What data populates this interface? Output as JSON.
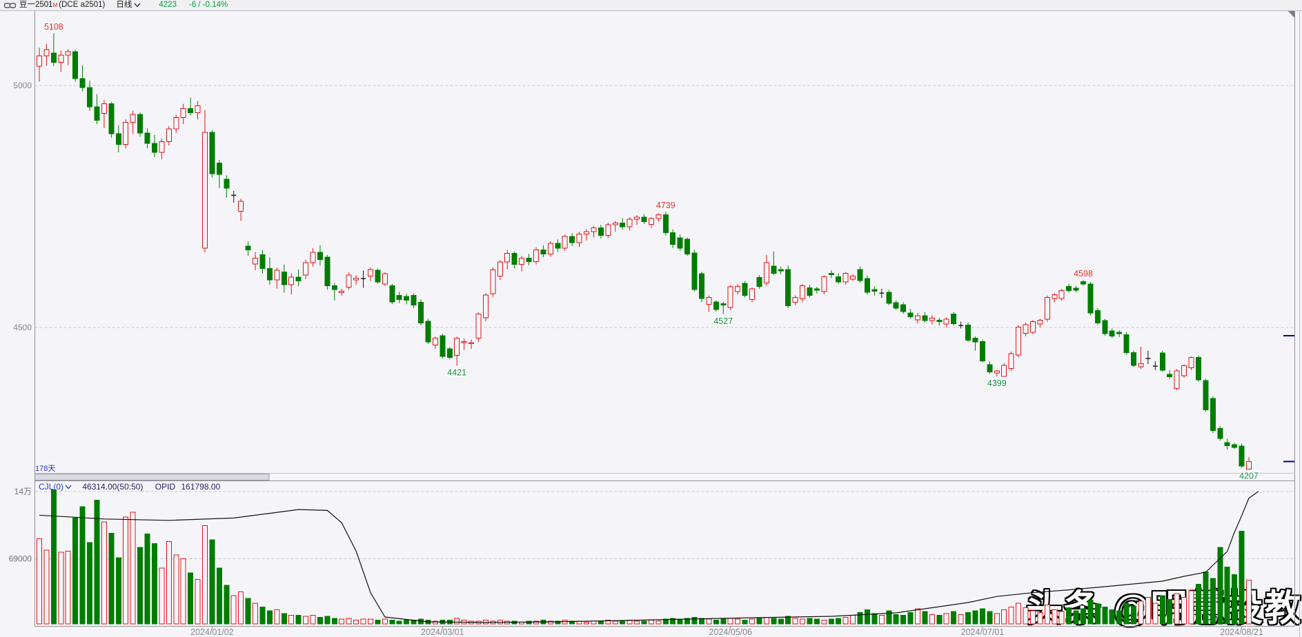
{
  "header": {
    "symbol": "豆一2501",
    "flag": "M",
    "code": "(DCE a2501)",
    "period": "日线",
    "price": "4223",
    "change": "-6 / -0.14%"
  },
  "main_chart": {
    "range_label": "178天"
  },
  "sub_chart": {
    "indicator": "CJL(0)",
    "value": "46314.00(50:50)",
    "opid_label": "OPID",
    "opid_value": "161798.00"
  },
  "watermark": "头条 @明慧投教",
  "colors": {
    "up": "#e11212",
    "down": "#007d00",
    "doji": "#111111",
    "high_label": "#e02424",
    "low_label": "#118a43",
    "accent_blue": "#2244cc",
    "navy_marker": "#00008b",
    "grid": "#c9c9cf",
    "axis": "#8f8f97",
    "text_gray": "#86868c",
    "oi_line": "#101010",
    "bg": "#f5f5f9"
  },
  "chart_data": {
    "type": "candlestick",
    "title": "豆一2501 (DCE a2501) 日线",
    "price_axis": {
      "ticks": [
        {
          "label": "5000",
          "value": 5000
        },
        {
          "label": "4500",
          "value": 4500
        }
      ]
    },
    "volume_axis": {
      "ticks": [
        {
          "label": "14万",
          "value": 140000
        },
        {
          "label": "69000",
          "value": 69000
        }
      ]
    },
    "date_ticks": [
      {
        "label": "2024/01/02",
        "index": 24
      },
      {
        "label": "2024/03/01",
        "index": 56
      },
      {
        "label": "2024/05/06",
        "index": 96
      },
      {
        "label": "2024/07/01",
        "index": 131
      },
      {
        "label": "2024/08/21",
        "index": 167
      }
    ],
    "extreme_labels": [
      {
        "text": "5108",
        "index": 2,
        "price": 5108,
        "kind": "high"
      },
      {
        "text": "4739",
        "index": 87,
        "price": 4739,
        "kind": "high"
      },
      {
        "text": "4598",
        "index": 145,
        "price": 4598,
        "kind": "high"
      },
      {
        "text": "4421",
        "index": 58,
        "price": 4421,
        "kind": "low"
      },
      {
        "text": "4527",
        "index": 95,
        "price": 4527,
        "kind": "low"
      },
      {
        "text": "4399",
        "index": 133,
        "price": 4399,
        "kind": "low"
      },
      {
        "text": "4207",
        "index": 168,
        "price": 4207,
        "kind": "low"
      }
    ],
    "right_price_markers": [
      4483,
      4223
    ],
    "candles": [
      [
        5040,
        5078,
        5008,
        5061
      ],
      [
        5061,
        5086,
        5041,
        5074
      ],
      [
        5067,
        5108,
        5040,
        5048
      ],
      [
        5048,
        5072,
        5028,
        5063
      ],
      [
        5063,
        5075,
        5042,
        5070
      ],
      [
        5070,
        5074,
        5008,
        5014
      ],
      [
        5014,
        5042,
        4988,
        4996
      ],
      [
        4996,
        5010,
        4948,
        4956
      ],
      [
        4956,
        4982,
        4920,
        4928
      ],
      [
        4942,
        4970,
        4912,
        4962
      ],
      [
        4962,
        4966,
        4892,
        4900
      ],
      [
        4900,
        4918,
        4862,
        4878
      ],
      [
        4878,
        4930,
        4870,
        4924
      ],
      [
        4924,
        4948,
        4900,
        4940
      ],
      [
        4940,
        4944,
        4894,
        4902
      ],
      [
        4902,
        4912,
        4870,
        4880
      ],
      [
        4880,
        4898,
        4852,
        4862
      ],
      [
        4862,
        4890,
        4848,
        4884
      ],
      [
        4884,
        4916,
        4876,
        4910
      ],
      [
        4910,
        4940,
        4902,
        4934
      ],
      [
        4934,
        4962,
        4920,
        4952
      ],
      [
        4952,
        4975,
        4938,
        4944
      ],
      [
        4944,
        4968,
        4930,
        4958
      ],
      [
        4664,
        4949,
        4655,
        4903
      ],
      [
        4903,
        4908,
        4810,
        4818
      ],
      [
        4840,
        4846,
        4788,
        4816
      ],
      [
        4806,
        4814,
        4768,
        4788
      ],
      [
        4773,
        4782,
        4758,
        4773
      ],
      [
        4740,
        4766,
        4720,
        4761
      ],
      [
        4668,
        4678,
        4648,
        4660
      ],
      [
        4631,
        4656,
        4618,
        4643
      ],
      [
        4650,
        4660,
        4612,
        4622
      ],
      [
        4622,
        4645,
        4588,
        4598
      ],
      [
        4598,
        4624,
        4580,
        4618
      ],
      [
        4615,
        4630,
        4572,
        4588
      ],
      [
        4588,
        4612,
        4568,
        4604
      ],
      [
        4604,
        4620,
        4585,
        4596
      ],
      [
        4608,
        4640,
        4600,
        4634
      ],
      [
        4634,
        4664,
        4626,
        4655
      ],
      [
        4655,
        4670,
        4628,
        4640
      ],
      [
        4645,
        4650,
        4578,
        4586
      ],
      [
        4586,
        4592,
        4556,
        4578
      ],
      [
        4572,
        4580,
        4566,
        4575
      ],
      [
        4583,
        4614,
        4578,
        4608
      ],
      [
        4598,
        4608,
        4588,
        4602
      ],
      [
        4600,
        4618,
        4582,
        4601
      ],
      [
        4606,
        4624,
        4596,
        4620
      ],
      [
        4618,
        4622,
        4590,
        4594
      ],
      [
        4590,
        4614,
        4586,
        4611
      ],
      [
        4586,
        4590,
        4548,
        4553
      ],
      [
        4566,
        4574,
        4550,
        4558
      ],
      [
        4564,
        4570,
        4548,
        4556
      ],
      [
        4566,
        4570,
        4540,
        4546
      ],
      [
        4552,
        4558,
        4504,
        4509
      ],
      [
        4513,
        4518,
        4466,
        4470
      ],
      [
        4464,
        4481,
        4456,
        4478
      ],
      [
        4483,
        4487,
        4436,
        4440
      ],
      [
        4456,
        4460,
        4434,
        4438
      ],
      [
        4442,
        4481,
        4421,
        4478
      ],
      [
        4469,
        4477,
        4453,
        4471
      ],
      [
        4467,
        4475,
        4456,
        4469
      ],
      [
        4478,
        4531,
        4470,
        4528
      ],
      [
        4520,
        4571,
        4513,
        4567
      ],
      [
        4570,
        4624,
        4563,
        4619
      ],
      [
        4606,
        4639,
        4598,
        4635
      ],
      [
        4635,
        4660,
        4620,
        4653
      ],
      [
        4653,
        4657,
        4622,
        4630
      ],
      [
        4630,
        4648,
        4616,
        4643
      ],
      [
        4643,
        4652,
        4628,
        4636
      ],
      [
        4636,
        4666,
        4630,
        4660
      ],
      [
        4660,
        4670,
        4645,
        4652
      ],
      [
        4652,
        4678,
        4646,
        4674
      ],
      [
        4674,
        4682,
        4656,
        4664
      ],
      [
        4664,
        4692,
        4658,
        4688
      ],
      [
        4688,
        4695,
        4668,
        4675
      ],
      [
        4675,
        4698,
        4666,
        4693
      ],
      [
        4693,
        4703,
        4680,
        4698
      ],
      [
        4698,
        4710,
        4686,
        4706
      ],
      [
        4706,
        4712,
        4684,
        4690
      ],
      [
        4690,
        4716,
        4685,
        4712
      ],
      [
        4712,
        4720,
        4698,
        4716
      ],
      [
        4716,
        4726,
        4702,
        4708
      ],
      [
        4708,
        4728,
        4700,
        4724
      ],
      [
        4724,
        4732,
        4712,
        4728
      ],
      [
        4728,
        4734,
        4714,
        4719
      ],
      [
        4713,
        4728,
        4706,
        4725
      ],
      [
        4725,
        4736,
        4718,
        4733
      ],
      [
        4733,
        4739,
        4690,
        4696
      ],
      [
        4696,
        4703,
        4664,
        4672
      ],
      [
        4685,
        4692,
        4658,
        4664
      ],
      [
        4682,
        4686,
        4648,
        4652
      ],
      [
        4654,
        4660,
        4575,
        4578
      ],
      [
        4611,
        4615,
        4552,
        4560
      ],
      [
        4548,
        4566,
        4532,
        4562
      ],
      [
        4553,
        4556,
        4533,
        4537
      ],
      [
        4549,
        4553,
        4527,
        4546
      ],
      [
        4541,
        4588,
        4536,
        4584
      ],
      [
        4574,
        4590,
        4568,
        4585
      ],
      [
        4591,
        4596,
        4562,
        4566
      ],
      [
        4558,
        4583,
        4552,
        4580
      ],
      [
        4603,
        4608,
        4580,
        4585
      ],
      [
        4592,
        4650,
        4586,
        4634
      ],
      [
        4627,
        4657,
        4608,
        4612
      ],
      [
        4620,
        4626,
        4610,
        4617
      ],
      [
        4620,
        4628,
        4540,
        4545
      ],
      [
        4552,
        4566,
        4546,
        4562
      ],
      [
        4559,
        4590,
        4552,
        4586
      ],
      [
        4582,
        4588,
        4562,
        4566
      ],
      [
        4580,
        4584,
        4570,
        4577
      ],
      [
        4574,
        4608,
        4568,
        4605
      ],
      [
        4612,
        4618,
        4602,
        4609
      ],
      [
        4605,
        4612,
        4590,
        4594
      ],
      [
        4594,
        4615,
        4588,
        4612
      ],
      [
        4600,
        4610,
        4596,
        4606
      ],
      [
        4620,
        4626,
        4592,
        4597
      ],
      [
        4601,
        4608,
        4568,
        4573
      ],
      [
        4578,
        4585,
        4566,
        4575
      ],
      [
        4571,
        4580,
        4561,
        4571
      ],
      [
        4573,
        4578,
        4546,
        4550
      ],
      [
        4551,
        4556,
        4536,
        4540
      ],
      [
        4547,
        4552,
        4528,
        4533
      ],
      [
        4530,
        4538,
        4518,
        4522
      ],
      [
        4516,
        4530,
        4508,
        4524
      ],
      [
        4524,
        4532,
        4510,
        4514
      ],
      [
        4514,
        4526,
        4506,
        4519
      ],
      [
        4515,
        4520,
        4504,
        4512
      ],
      [
        4507,
        4521,
        4500,
        4517
      ],
      [
        4528,
        4532,
        4504,
        4508
      ],
      [
        4505,
        4512,
        4498,
        4504
      ],
      [
        4505,
        4510,
        4470,
        4474
      ],
      [
        4478,
        4482,
        4452,
        4470
      ],
      [
        4471,
        4475,
        4428,
        4431
      ],
      [
        4423,
        4430,
        4404,
        4408
      ],
      [
        4406,
        4412,
        4399,
        4410
      ],
      [
        4399,
        4426,
        4399,
        4422
      ],
      [
        4415,
        4450,
        4410,
        4446
      ],
      [
        4443,
        4505,
        4438,
        4501
      ],
      [
        4488,
        4510,
        4482,
        4506
      ],
      [
        4490,
        4515,
        4486,
        4512
      ],
      [
        4507,
        4518,
        4500,
        4515
      ],
      [
        4517,
        4566,
        4512,
        4562
      ],
      [
        4560,
        4571,
        4552,
        4568
      ],
      [
        4560,
        4580,
        4555,
        4576
      ],
      [
        4585,
        4590,
        4572,
        4576
      ],
      [
        4581,
        4586,
        4572,
        4577
      ],
      [
        4595,
        4598,
        4586,
        4590
      ],
      [
        4590,
        4594,
        4525,
        4530
      ],
      [
        4535,
        4540,
        4505,
        4509
      ],
      [
        4514,
        4518,
        4483,
        4487
      ],
      [
        4493,
        4498,
        4478,
        4482
      ],
      [
        4490,
        4494,
        4480,
        4487
      ],
      [
        4485,
        4490,
        4444,
        4448
      ],
      [
        4448,
        4452,
        4418,
        4422
      ],
      [
        4419,
        4460,
        4414,
        4425
      ],
      [
        4436,
        4452,
        4424,
        4436
      ],
      [
        4421,
        4430,
        4412,
        4420
      ],
      [
        4447,
        4452,
        4408,
        4412
      ],
      [
        4403,
        4412,
        4394,
        4398
      ],
      [
        4374,
        4414,
        4370,
        4410
      ],
      [
        4400,
        4424,
        4396,
        4421
      ],
      [
        4417,
        4440,
        4412,
        4438
      ],
      [
        4438,
        4442,
        4388,
        4392
      ],
      [
        4390,
        4394,
        4326,
        4330
      ],
      [
        4353,
        4358,
        4282,
        4287
      ],
      [
        4291,
        4296,
        4266,
        4271
      ],
      [
        4262,
        4270,
        4248,
        4256
      ],
      [
        4258,
        4262,
        4249,
        4252
      ],
      [
        4255,
        4260,
        4210,
        4214
      ],
      [
        4207,
        4232,
        4207,
        4223
      ]
    ],
    "volumes": [
      90000,
      78000,
      142000,
      76000,
      77000,
      112000,
      124000,
      86000,
      131000,
      108000,
      96000,
      70000,
      113000,
      118000,
      81000,
      95000,
      85000,
      59000,
      87000,
      73000,
      69000,
      54000,
      47000,
      104000,
      89000,
      59000,
      41000,
      30000,
      34000,
      27000,
      22000,
      18000,
      14000,
      15000,
      11000,
      9000,
      9000,
      8000,
      9000,
      7000,
      8000,
      6000,
      5000,
      6000,
      4000,
      5000,
      5000,
      4000,
      5000,
      4000,
      3000,
      4000,
      4000,
      5000,
      4000,
      3000,
      4000,
      4000,
      6000,
      4000,
      3000,
      3000,
      4000,
      3000,
      4000,
      3000,
      3000,
      2000,
      3000,
      3000,
      4000,
      3000,
      3000,
      4000,
      3000,
      3000,
      2000,
      3000,
      3000,
      4000,
      3000,
      3000,
      4000,
      3000,
      3000,
      4000,
      3000,
      5000,
      6000,
      5000,
      6000,
      7000,
      6000,
      5000,
      4000,
      5000,
      6000,
      5000,
      4000,
      5000,
      6000,
      7000,
      6000,
      5000,
      8000,
      6000,
      5000,
      6000,
      5000,
      4000,
      5000,
      6000,
      7000,
      9000,
      12000,
      15000,
      11000,
      9000,
      14000,
      10000,
      9000,
      12000,
      16000,
      13000,
      10000,
      9000,
      11000,
      13000,
      10000,
      12000,
      14000,
      16000,
      13000,
      11000,
      15000,
      18000,
      22000,
      17000,
      14000,
      12000,
      20000,
      15000,
      13000,
      17000,
      14000,
      16000,
      25000,
      21000,
      18000,
      15000,
      14000,
      22000,
      19000,
      24000,
      28000,
      22000,
      30000,
      26000,
      32000,
      28000,
      35000,
      42000,
      55000,
      48000,
      81000,
      60000,
      52000,
      98000,
      46314
    ],
    "open_interest_line": [
      [
        0,
        115000
      ],
      [
        9,
        111000
      ],
      [
        18,
        109500
      ],
      [
        27,
        112000
      ],
      [
        36,
        121000
      ],
      [
        40,
        120000
      ],
      [
        42,
        107000
      ],
      [
        44,
        77000
      ],
      [
        46,
        33000
      ],
      [
        48,
        7300
      ],
      [
        54,
        2200
      ],
      [
        62,
        1500
      ],
      [
        71,
        2200
      ],
      [
        81,
        3600
      ],
      [
        90,
        5100
      ],
      [
        100,
        6600
      ],
      [
        110,
        8000
      ],
      [
        119,
        11700
      ],
      [
        129,
        22600
      ],
      [
        133,
        29000
      ],
      [
        138,
        33000
      ],
      [
        143,
        36000
      ],
      [
        148,
        39400
      ],
      [
        153,
        43000
      ],
      [
        156,
        45200
      ],
      [
        159,
        50300
      ],
      [
        162,
        54700
      ],
      [
        163,
        62000
      ],
      [
        165,
        76600
      ],
      [
        166,
        97000
      ],
      [
        167,
        114500
      ],
      [
        168,
        133000
      ],
      [
        169.3,
        140000
      ]
    ]
  }
}
